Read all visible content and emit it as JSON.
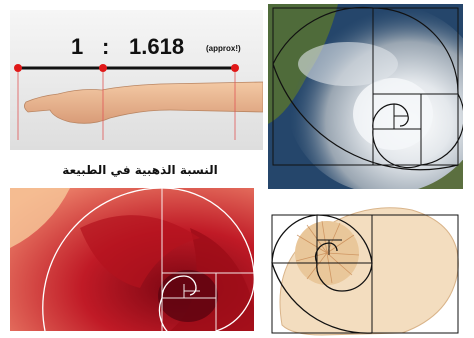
{
  "ratio": {
    "left": "1",
    "separator": ":",
    "value": "1.618",
    "note": "(approx!)"
  },
  "caption": "النسبة الذهبية في الطبيعة",
  "colors": {
    "marker_dot": "#e01818",
    "arm_background": "#e9e9e9",
    "storm_sea": "#20456e",
    "rose": "#b00f1c",
    "shell": "#f3ddbf"
  },
  "icons": [
    "golden-spiral",
    "golden-rectangle-grid"
  ]
}
